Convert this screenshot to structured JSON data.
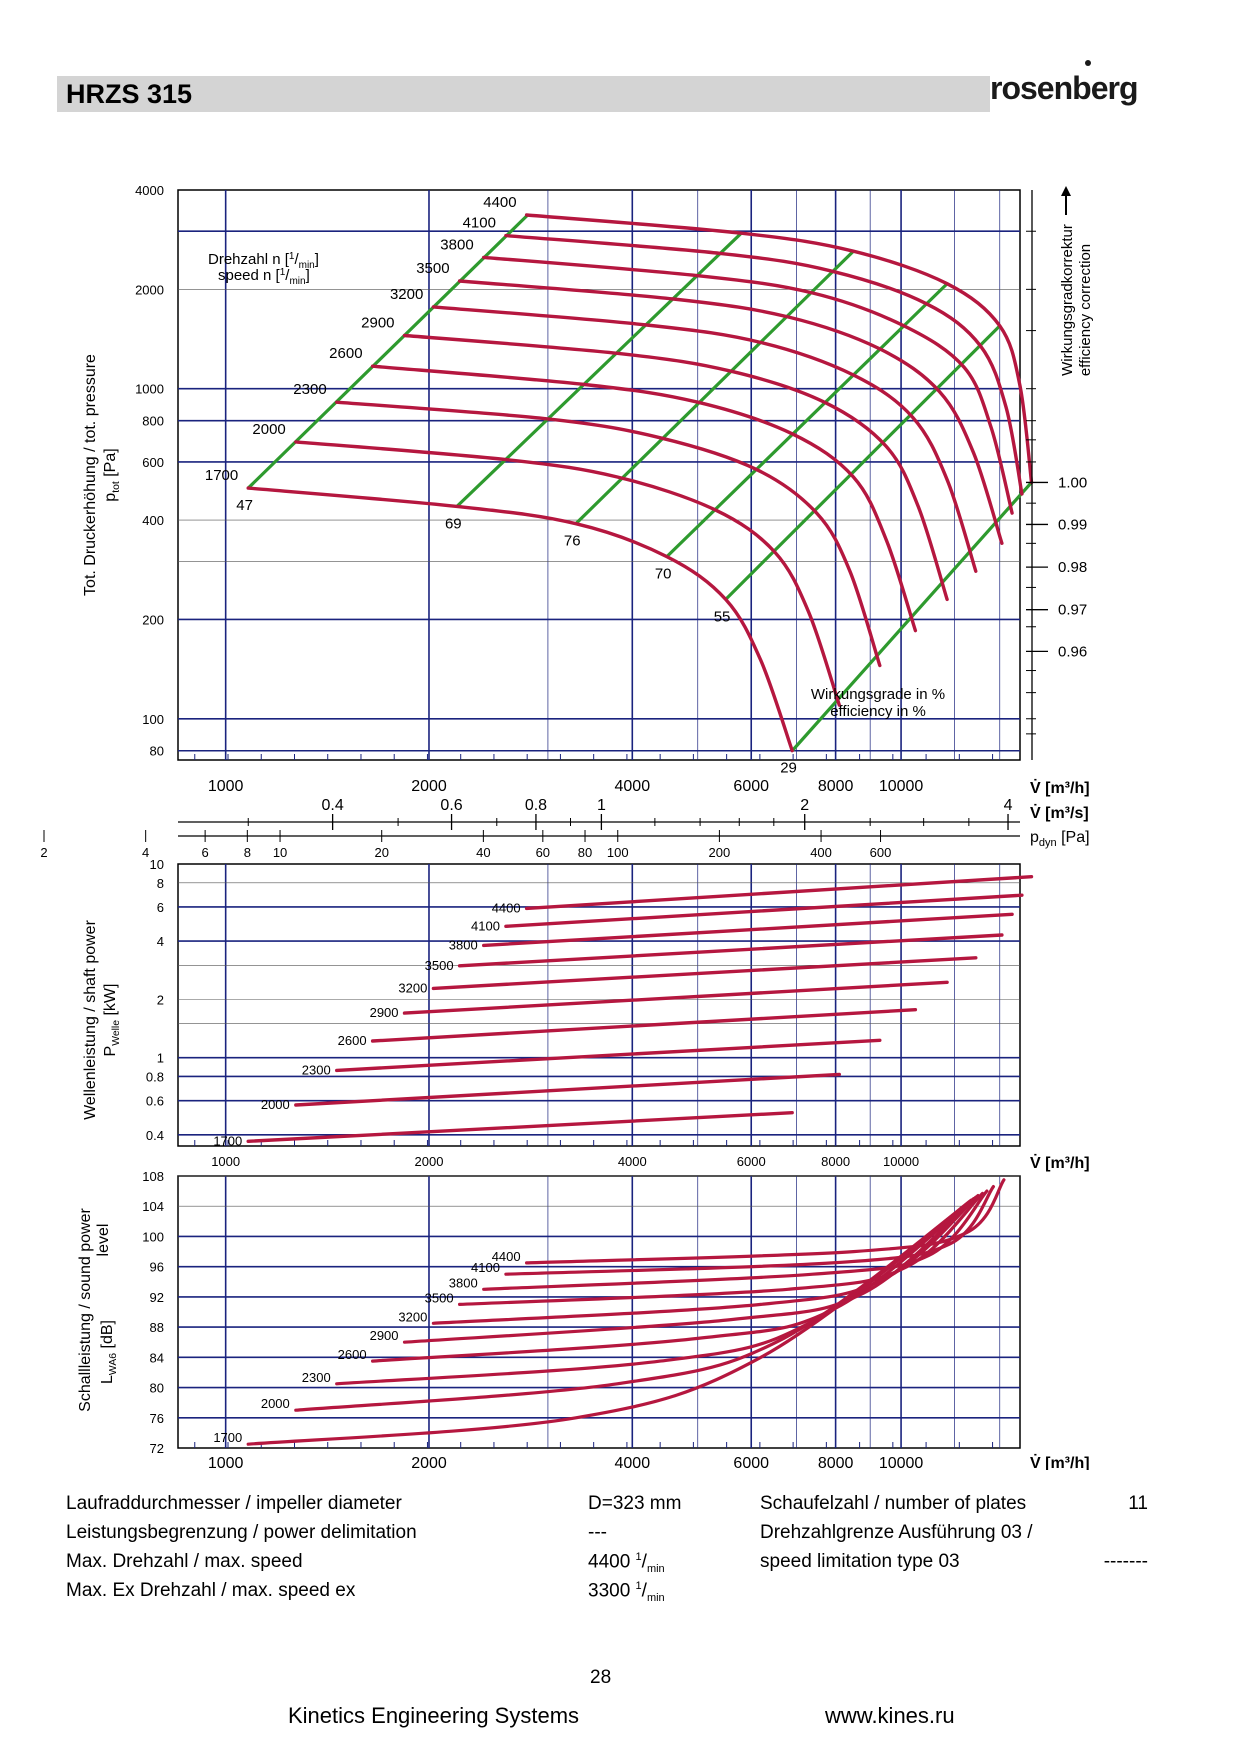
{
  "header": {
    "model": "HRZS 315",
    "brand": "rosenberg"
  },
  "chart_data": [
    {
      "type": "line",
      "name": "pressure",
      "x_scale": "log",
      "y_scale": "log",
      "xlim": [
        850,
        15000
      ],
      "ylim": [
        75,
        4000
      ],
      "ylabel": "Tot. Druckerhöhung / tot. pressure",
      "ylabel_sym": "p",
      "ylabel_sub": "tot",
      "ylabel_unit": " [Pa]",
      "speed_label_1": "Drehzahl n [",
      "speed_label_2": "speed n [",
      "unit_num": "1",
      "unit_den": "min",
      "unit_close": "]",
      "right_label_1": "Wirkungsgradkorrektur",
      "right_label_2": "efficiency correction",
      "eff_label_1": "Wirkungsgrade in %",
      "eff_label_2": "efficiency in %",
      "y_ticks": [
        "4000",
        "2000",
        "1000",
        "800",
        "600",
        "400",
        "200",
        "100",
        "80"
      ],
      "correction_ticks": [
        {
          "y": 520,
          "label": "1.00"
        },
        {
          "y": 388,
          "label": "0.99"
        },
        {
          "y": 288,
          "label": "0.98"
        },
        {
          "y": 214,
          "label": "0.97"
        },
        {
          "y": 160,
          "label": "0.96"
        }
      ],
      "axis_m3h": {
        "unit": "[m³/h]",
        "ticks": [
          "1000",
          "2000",
          "4000",
          "6000",
          "8000",
          "10000"
        ]
      },
      "axis_m3s": {
        "unit": "[m³/s]",
        "ticks": [
          "0.4",
          "0.6",
          "0.8",
          "1",
          "2",
          "4"
        ]
      },
      "axis_pdyn": {
        "sym": "p",
        "sub": "dyn",
        "unit": " [Pa]",
        "ticks": [
          "2",
          "4",
          "6",
          "8",
          "10",
          "20",
          "40",
          "60",
          "80",
          "100",
          "200",
          "400",
          "600"
        ]
      },
      "series": [
        {
          "name": "1700",
          "x": [
            1080,
            2200,
            3300,
            4500,
            5500,
            6200,
            6900
          ],
          "y": [
            500,
            440,
            390,
            310,
            230,
            150,
            80
          ]
        },
        {
          "name": "2000",
          "x": [
            1270,
            2600,
            3800,
            5300,
            6500,
            7300,
            8100
          ],
          "y": [
            690,
            610,
            540,
            430,
            320,
            210,
            110
          ]
        },
        {
          "name": "2300",
          "x": [
            1460,
            3000,
            4400,
            6100,
            7500,
            8400,
            9300
          ],
          "y": [
            910,
            810,
            710,
            570,
            420,
            280,
            145
          ]
        },
        {
          "name": "2600",
          "x": [
            1650,
            3400,
            5000,
            6900,
            8500,
            9500,
            10500
          ],
          "y": [
            1170,
            1030,
            910,
            730,
            540,
            350,
            185
          ]
        },
        {
          "name": "2900",
          "x": [
            1840,
            3800,
            5600,
            7700,
            9500,
            10600,
            11700
          ],
          "y": [
            1450,
            1280,
            1130,
            910,
            670,
            440,
            230
          ]
        },
        {
          "name": "3200",
          "x": [
            2030,
            4200,
            6200,
            8500,
            10400,
            11700,
            12900
          ],
          "y": [
            1770,
            1560,
            1380,
            1100,
            820,
            530,
            280
          ]
        },
        {
          "name": "3500",
          "x": [
            2220,
            4600,
            6800,
            9300,
            11400,
            12800,
            14100
          ],
          "y": [
            2120,
            1870,
            1650,
            1320,
            980,
            640,
            340
          ]
        },
        {
          "name": "3800",
          "x": [
            2410,
            5000,
            7400,
            10100,
            12400,
            13600,
            14600
          ],
          "y": [
            2500,
            2200,
            1950,
            1550,
            1160,
            760,
            420
          ]
        },
        {
          "name": "4100",
          "x": [
            2600,
            5400,
            7900,
            10900,
            13100,
            14300,
            15100
          ],
          "y": [
            2910,
            2570,
            2270,
            1810,
            1350,
            880,
            480
          ]
        },
        {
          "name": "4400",
          "x": [
            2790,
            5800,
            8500,
            11700,
            14000,
            15000,
            15600
          ],
          "y": [
            3360,
            2960,
            2610,
            2080,
            1550,
            1020,
            520
          ]
        }
      ],
      "efficiency": [
        {
          "label": "47",
          "x": [
            1080,
            2800
          ],
          "y": [
            500,
            3360
          ]
        },
        {
          "label": "69",
          "x": [
            2200,
            5800
          ],
          "y": [
            440,
            2960
          ]
        },
        {
          "label": "76",
          "x": [
            3300,
            8500
          ],
          "y": [
            390,
            2610
          ]
        },
        {
          "label": "70",
          "x": [
            4500,
            11700
          ],
          "y": [
            310,
            2080
          ]
        },
        {
          "label": "55",
          "x": [
            5500,
            14000
          ],
          "y": [
            230,
            1550
          ]
        },
        {
          "label": "29",
          "x": [
            6900,
            15600
          ],
          "y": [
            80,
            520
          ]
        }
      ]
    },
    {
      "type": "line",
      "name": "shaft-power",
      "x_scale": "log",
      "y_scale": "log",
      "xlim": [
        850,
        15000
      ],
      "ylim": [
        0.35,
        10
      ],
      "ylabel": "Wellenleistung / shaft power",
      "ylabel_sym": "P",
      "ylabel_sub": "Welle",
      "ylabel_unit": " [kW]",
      "y_ticks": [
        "10",
        "8",
        "6",
        "4",
        "2",
        "1",
        "0.8",
        "0.6",
        "0.4"
      ],
      "axis_m3h": {
        "unit": "[m³/h]",
        "ticks": [
          "1000",
          "2000",
          "4000",
          "6000",
          "8000",
          "10000"
        ]
      },
      "series": [
        {
          "name": "1700",
          "x": [
            1080,
            6900
          ],
          "y": [
            0.37,
            0.52
          ]
        },
        {
          "name": "2000",
          "x": [
            1270,
            8100
          ],
          "y": [
            0.57,
            0.82
          ]
        },
        {
          "name": "2300",
          "x": [
            1460,
            9300
          ],
          "y": [
            0.86,
            1.23
          ]
        },
        {
          "name": "2600",
          "x": [
            1650,
            10500
          ],
          "y": [
            1.22,
            1.77
          ]
        },
        {
          "name": "2900",
          "x": [
            1840,
            11700
          ],
          "y": [
            1.7,
            2.45
          ]
        },
        {
          "name": "3200",
          "x": [
            2030,
            12900
          ],
          "y": [
            2.28,
            3.28
          ]
        },
        {
          "name": "3500",
          "x": [
            2220,
            14100
          ],
          "y": [
            2.98,
            4.3
          ]
        },
        {
          "name": "3800",
          "x": [
            2410,
            14600
          ],
          "y": [
            3.8,
            5.5
          ]
        },
        {
          "name": "4100",
          "x": [
            2600,
            15100
          ],
          "y": [
            4.77,
            6.9
          ]
        },
        {
          "name": "4400",
          "x": [
            2790,
            15600
          ],
          "y": [
            5.9,
            8.6
          ]
        }
      ]
    },
    {
      "type": "line",
      "name": "sound-power",
      "x_scale": "log",
      "y_scale": "linear",
      "xlim": [
        850,
        15000
      ],
      "ylim": [
        72,
        108
      ],
      "ylabel_1": "Schallleistung / sound power",
      "ylabel_2": "level",
      "ylabel_sym": "L",
      "ylabel_sub": "WA6",
      "ylabel_unit": " [dB]",
      "y_ticks": [
        "108",
        "104",
        "100",
        "96",
        "92",
        "88",
        "84",
        "80",
        "76",
        "72"
      ],
      "axis_m3h": {
        "unit": "[m³/h]",
        "ticks": [
          "1000",
          "2000",
          "4000",
          "6000",
          "8000",
          "10000"
        ]
      },
      "series": [
        {
          "name": "1700",
          "x": [
            1080,
            3300,
            6200,
            12500
          ],
          "y": [
            72.5,
            76,
            84,
            104
          ]
        },
        {
          "name": "2000",
          "x": [
            1270,
            3800,
            6700,
            12600
          ],
          "y": [
            77,
            80.5,
            86.5,
            104.5
          ]
        },
        {
          "name": "2300",
          "x": [
            1460,
            4400,
            7300,
            12700
          ],
          "y": [
            80.5,
            83.5,
            88.5,
            104.8
          ]
        },
        {
          "name": "2600",
          "x": [
            1650,
            5000,
            8000,
            12800
          ],
          "y": [
            83.5,
            86.5,
            90.5,
            105
          ]
        },
        {
          "name": "2900",
          "x": [
            1840,
            5600,
            8800,
            12900
          ],
          "y": [
            86,
            89,
            92.5,
            105.2
          ]
        },
        {
          "name": "3200",
          "x": [
            2030,
            6200,
            9500,
            13000
          ],
          "y": [
            88.5,
            91,
            94.5,
            105.4
          ]
        },
        {
          "name": "3500",
          "x": [
            2220,
            6800,
            10200,
            13200
          ],
          "y": [
            91,
            93,
            96,
            105.7
          ]
        },
        {
          "name": "3800",
          "x": [
            2410,
            7400,
            11000,
            13400
          ],
          "y": [
            93,
            95,
            97.5,
            106
          ]
        },
        {
          "name": "4100",
          "x": [
            2600,
            7900,
            11800,
            13700
          ],
          "y": [
            95,
            96.5,
            99,
            106.6
          ]
        },
        {
          "name": "4400",
          "x": [
            2790,
            8500,
            12500,
            14200
          ],
          "y": [
            96.5,
            98,
            100.5,
            107.5
          ]
        }
      ]
    }
  ],
  "specs": {
    "rows": [
      {
        "label": "Laufraddurchmesser / impeller diameter",
        "value": "D=323 mm",
        "value_sup": "",
        "value_sub": "",
        "label2": "Schaufelzahl / number of plates",
        "value2": "11"
      },
      {
        "label": "Leistungsbegrenzung / power delimitation",
        "value": "---",
        "value_sup": "",
        "value_sub": "",
        "label2": "Drehzahlgrenze Ausführung 03 /",
        "value2": ""
      },
      {
        "label": "Max. Drehzahl / max. speed",
        "value": "4400 ",
        "value_sup": "1",
        "value_sub": "min",
        "label2": " speed limitation type 03",
        "value2": "-------"
      },
      {
        "label": "Max. Ex Drehzahl / max. speed ex",
        "value": "3300 ",
        "value_sup": "1",
        "value_sub": "min",
        "label2": "",
        "value2": ""
      }
    ]
  },
  "footer": {
    "page": "28",
    "company": "Kinetics Engineering Systems",
    "url": "www.kines.ru"
  },
  "colors": {
    "curve": "#b5173f",
    "efficiency": "#2e9a2e",
    "grid": "#1a237e",
    "header_bar": "#d4d4d4"
  }
}
